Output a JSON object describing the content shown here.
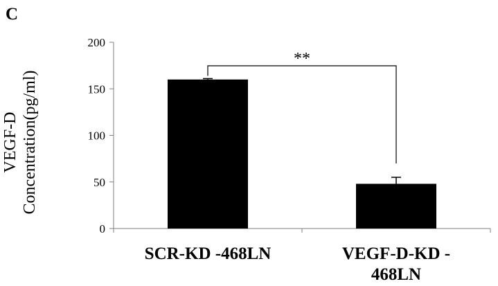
{
  "panel_label": "C",
  "chart_data": {
    "type": "bar",
    "categories": [
      [
        "SCR-KD -468LN"
      ],
      [
        "VEGF-D-KD -",
        "468LN"
      ]
    ],
    "values": [
      160,
      48
    ],
    "errors": [
      1,
      7
    ],
    "ylabel": [
      "VEGF-D",
      "Concentration(pg/ml)"
    ],
    "ylim": [
      0,
      200
    ],
    "yticks": [
      0,
      50,
      100,
      150,
      200
    ],
    "significance": {
      "label": "**",
      "between": [
        0,
        1
      ]
    },
    "grid": false,
    "bar_color": "#000000"
  }
}
